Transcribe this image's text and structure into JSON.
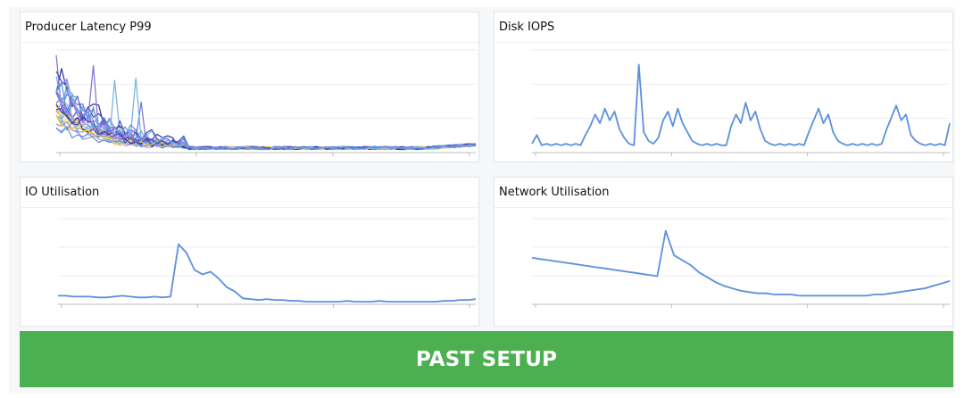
{
  "panels": {
    "latency": {
      "title": "Producer Latency P99"
    },
    "iops": {
      "title": "Disk IOPS"
    },
    "io": {
      "title": "IO Utilisation"
    },
    "network": {
      "title": "Network Utilisation"
    }
  },
  "banner": {
    "label": "PAST SETUP",
    "color": "#4caf50"
  },
  "colors": {
    "line": "#5b8fdf",
    "gridline": "#eceef1",
    "axis": "#b8bcc2",
    "latency_palette": [
      "#7b6fd8",
      "#9a88e8",
      "#f2c94c",
      "#4a4bb0",
      "#6fb3e0",
      "#5b8fdf",
      "#2f2b8f",
      "#b59be8"
    ]
  },
  "chart_data": [
    {
      "panel": "Producer Latency P99",
      "type": "line",
      "series_count": 8,
      "shape": "many series with high early spikes (values up to ~90% of range) decaying to a flat low baseline",
      "x_ticks_shown": 4
    },
    {
      "panel": "Disk IOPS",
      "type": "line",
      "values": [
        6,
        12,
        5,
        6,
        5,
        6,
        5,
        6,
        5,
        6,
        5,
        12,
        18,
        26,
        20,
        30,
        22,
        28,
        16,
        10,
        6,
        5,
        60,
        14,
        8,
        6,
        10,
        22,
        28,
        18,
        30,
        20,
        14,
        8,
        6,
        5,
        6,
        5,
        6,
        5,
        5,
        18,
        26,
        20,
        34,
        22,
        28,
        16,
        8,
        6,
        5,
        6,
        5,
        6,
        5,
        6,
        5,
        14,
        22,
        30,
        20,
        26,
        14,
        8,
        6,
        5,
        6,
        5,
        6,
        5,
        6,
        5,
        6,
        16,
        24,
        32,
        22,
        26,
        12,
        8,
        6,
        5,
        6,
        5,
        6,
        5,
        20
      ],
      "ylim": [
        0,
        70
      ],
      "x_ticks_shown": 4
    },
    {
      "panel": "IO Utilisation",
      "type": "line",
      "values": [
        10,
        10,
        9,
        9,
        9,
        8,
        8,
        9,
        10,
        9,
        8,
        8,
        9,
        8,
        9,
        70,
        60,
        40,
        35,
        38,
        30,
        20,
        15,
        7,
        6,
        5,
        6,
        5,
        5,
        4,
        4,
        3,
        3,
        3,
        3,
        3,
        4,
        3,
        3,
        3,
        4,
        3,
        3,
        3,
        3,
        3,
        3,
        3,
        4,
        4,
        5,
        5,
        6
      ],
      "ylim": [
        0,
        100
      ],
      "x_ticks_shown": 4
    },
    {
      "panel": "Network Utilisation",
      "type": "line",
      "values": [
        38,
        37,
        36,
        35,
        34,
        33,
        32,
        31,
        30,
        29,
        28,
        27,
        26,
        25,
        24,
        23,
        60,
        40,
        36,
        32,
        26,
        22,
        18,
        15,
        13,
        11,
        10,
        9,
        9,
        8,
        8,
        8,
        7,
        7,
        7,
        7,
        7,
        7,
        7,
        7,
        7,
        8,
        8,
        9,
        10,
        11,
        12,
        13,
        15,
        17,
        19
      ],
      "ylim": [
        0,
        70
      ],
      "x_ticks_shown": 4
    }
  ]
}
